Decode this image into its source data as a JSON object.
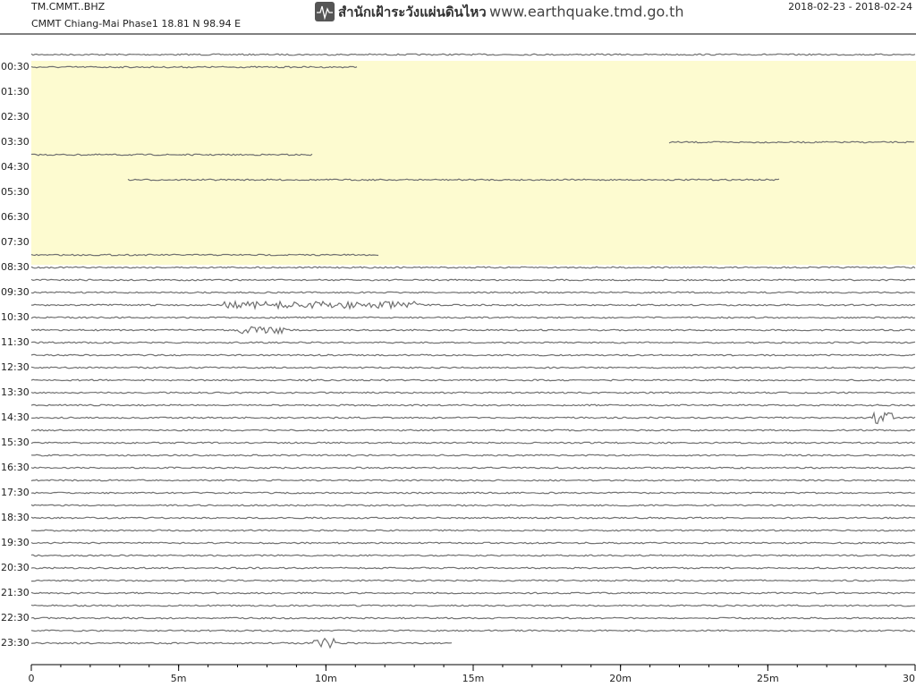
{
  "header": {
    "station": "TM.CMMT..BHZ",
    "location": "CMMT Chiang-Mai Phase1  18.81 N 98.94 E",
    "org": "สำนักเฝ้าระวังแผ่นดินไหว",
    "url": "www.earthquake.tmd.go.th",
    "date_range": "2018-02-23 - 2018-02-24"
  },
  "chart_data": {
    "type": "helicorder",
    "row_labels": [
      null,
      "00:30",
      null,
      "01:30",
      null,
      "02:30",
      null,
      "03:30",
      null,
      "04:30",
      null,
      "05:30",
      null,
      "06:30",
      null,
      "07:30",
      null,
      "08:30",
      null,
      "09:30",
      null,
      "10:30",
      null,
      "11:30",
      null,
      "12:30",
      null,
      "13:30",
      null,
      "14:30",
      null,
      "15:30",
      null,
      "16:30",
      null,
      "17:30",
      null,
      "18:30",
      null,
      "19:30",
      null,
      "20:30",
      null,
      "21:30",
      null,
      "22:30",
      null,
      "23:30"
    ],
    "xlim": [
      0,
      30
    ],
    "xticks": [
      0,
      {
        "value": 5,
        "label": "5m"
      },
      {
        "value": 10,
        "label": "10m"
      },
      {
        "value": 15,
        "label": "15m"
      },
      {
        "value": 20,
        "label": "20m"
      },
      {
        "value": 25,
        "label": "25m"
      },
      {
        "value": 30,
        "label": "30"
      }
    ]
  }
}
